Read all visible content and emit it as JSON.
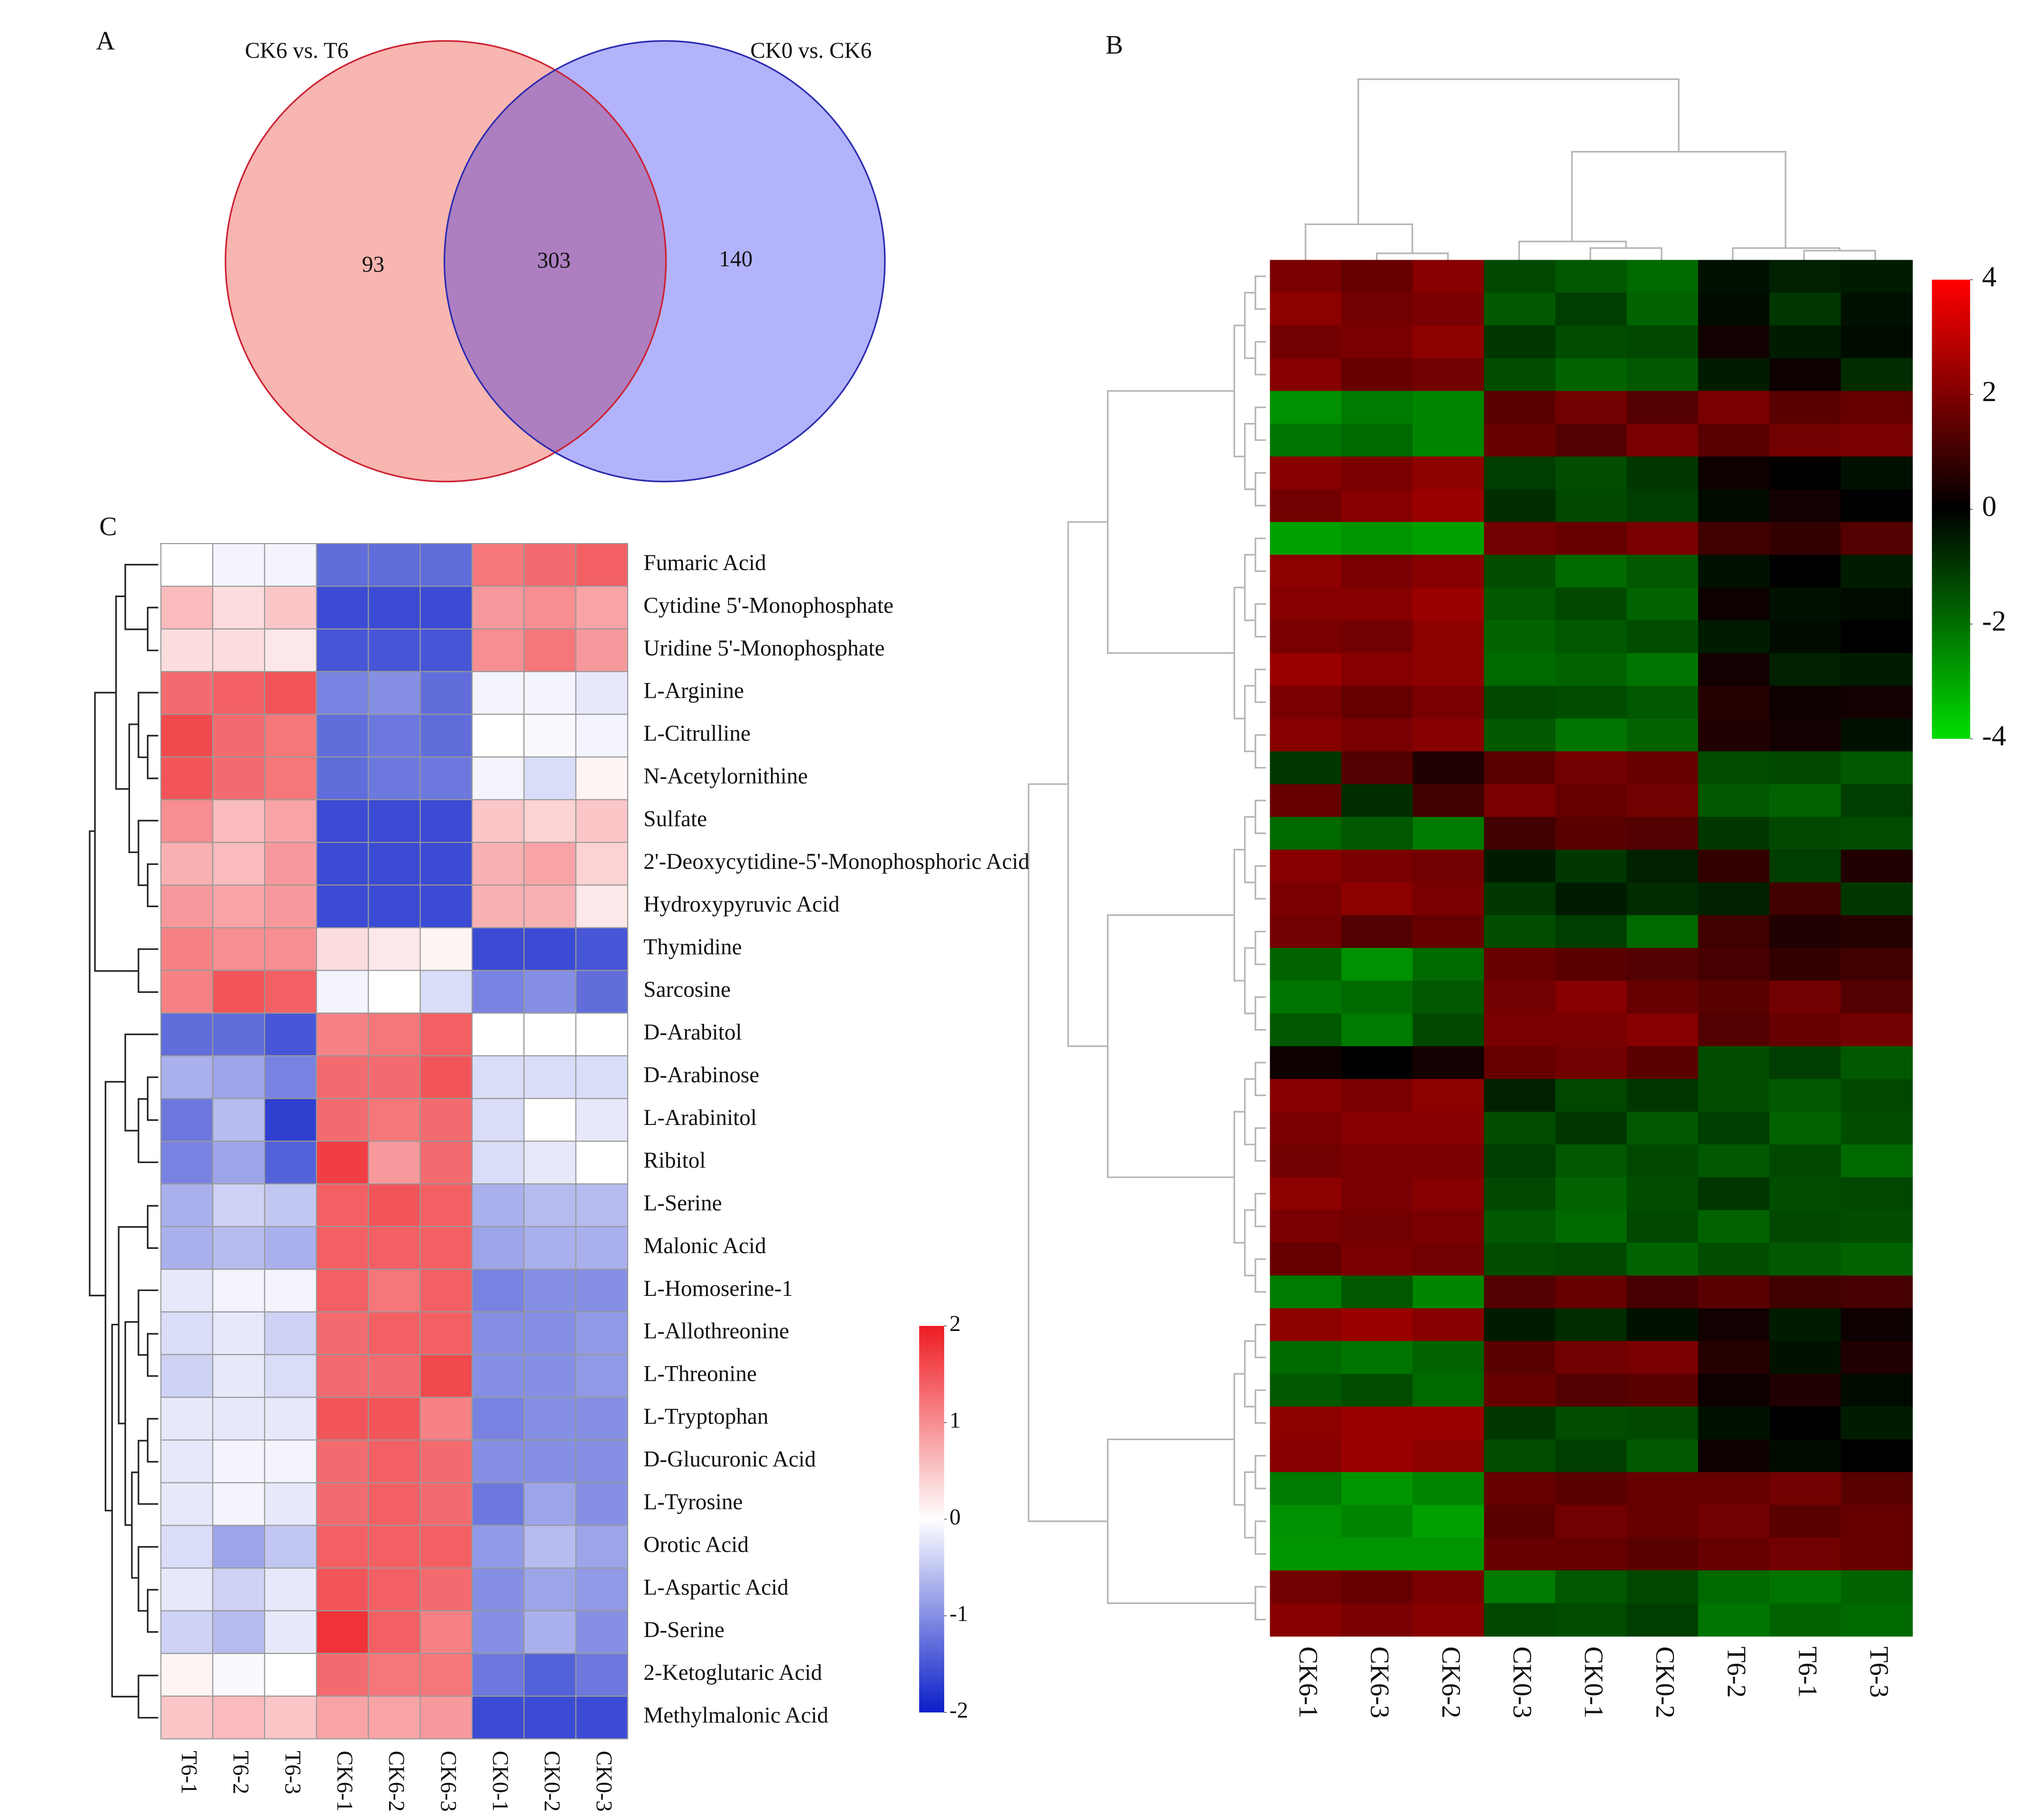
{
  "chart_data": [
    {
      "type": "venn",
      "panel_label": "A",
      "sets": [
        {
          "name": "CK6 vs. T6",
          "color": "#f8b6b0",
          "stroke": "#cc2233"
        },
        {
          "name": "CK0 vs. CK6",
          "color": "#b3b3fb",
          "stroke": "#2b2bb0"
        }
      ],
      "overlap_color": "#ad7fc0",
      "values": [
        93,
        303,
        140
      ]
    },
    {
      "type": "heatmap",
      "panel_label": "C",
      "categories": [
        "T6-1",
        "T6-2",
        "T6-3",
        "CK6-1",
        "CK6-2",
        "CK6-3",
        "CK0-1",
        "CK0-2",
        "CK0-3"
      ],
      "rows": [
        "Fumaric Acid",
        "Cytidine 5'-Monophosphate",
        "Uridine 5'-Monophosphate",
        "L-Arginine",
        "L-Citrulline",
        "N-Acetylornithine",
        "Sulfate",
        "2'-Deoxycytidine-5'-Monophosphoric Acid",
        "Hydroxypyruvic Acid",
        "Thymidine",
        "Sarcosine",
        "D-Arabitol",
        "D-Arabinose",
        "L-Arabinitol",
        "Ribitol",
        "L-Serine",
        "Malonic Acid",
        "L-Homoserine-1",
        "L-Allothreonine",
        "L-Threonine",
        "L-Tryptophan",
        "D-Glucuronic Acid",
        "L-Tyrosine",
        "Orotic Acid",
        "L-Aspartic Acid",
        "D-Serine",
        "2-Ketoglutaric Acid",
        "Methylmalonic Acid"
      ],
      "values": [
        [
          0,
          -0.1,
          -0.1,
          -1.3,
          -1.3,
          -1.3,
          1.2,
          1.3,
          1.4
        ],
        [
          0.6,
          0.3,
          0.5,
          -1.6,
          -1.6,
          -1.6,
          0.9,
          1.0,
          0.8
        ],
        [
          0.3,
          0.3,
          0.2,
          -1.5,
          -1.5,
          -1.5,
          1.0,
          1.2,
          0.9
        ],
        [
          1.3,
          1.4,
          1.5,
          -1.1,
          -1.0,
          -1.3,
          -0.1,
          -0.1,
          -0.2
        ],
        [
          1.6,
          1.3,
          1.2,
          -1.3,
          -1.2,
          -1.3,
          0,
          -0.05,
          -0.1
        ],
        [
          1.5,
          1.3,
          1.2,
          -1.3,
          -1.2,
          -1.2,
          -0.1,
          -0.3,
          0.1
        ],
        [
          1.0,
          0.6,
          0.8,
          -1.6,
          -1.6,
          -1.6,
          0.5,
          0.4,
          0.5
        ],
        [
          0.7,
          0.6,
          0.9,
          -1.6,
          -1.6,
          -1.6,
          0.7,
          0.8,
          0.4
        ],
        [
          0.9,
          0.8,
          0.9,
          -1.6,
          -1.6,
          -1.6,
          0.7,
          0.7,
          0.2
        ],
        [
          1.1,
          1.0,
          1.0,
          0.3,
          0.2,
          0.1,
          -1.6,
          -1.6,
          -1.5
        ],
        [
          1.1,
          1.5,
          1.4,
          -0.1,
          0,
          -0.3,
          -1.1,
          -1.0,
          -1.3
        ],
        [
          -1.3,
          -1.3,
          -1.5,
          1.1,
          1.2,
          1.4,
          0,
          0,
          0
        ],
        [
          -0.7,
          -0.8,
          -1.1,
          1.3,
          1.3,
          1.5,
          -0.3,
          -0.3,
          -0.3
        ],
        [
          -1.2,
          -0.6,
          -1.7,
          1.3,
          1.2,
          1.3,
          -0.3,
          0,
          -0.2
        ],
        [
          -1.1,
          -0.8,
          -1.4,
          1.7,
          0.9,
          1.3,
          -0.3,
          -0.2,
          0
        ],
        [
          -0.7,
          -0.4,
          -0.5,
          1.4,
          1.5,
          1.4,
          -0.7,
          -0.6,
          -0.6
        ],
        [
          -0.7,
          -0.6,
          -0.7,
          1.4,
          1.4,
          1.4,
          -0.8,
          -0.7,
          -0.7
        ],
        [
          -0.2,
          -0.1,
          -0.1,
          1.4,
          1.2,
          1.4,
          -1.1,
          -1.0,
          -1.0
        ],
        [
          -0.3,
          -0.2,
          -0.4,
          1.3,
          1.4,
          1.4,
          -1.0,
          -1.0,
          -0.9
        ],
        [
          -0.4,
          -0.2,
          -0.3,
          1.3,
          1.3,
          1.6,
          -1.0,
          -1.0,
          -0.9
        ],
        [
          -0.2,
          -0.2,
          -0.2,
          1.5,
          1.5,
          1.1,
          -1.1,
          -1.0,
          -1.0
        ],
        [
          -0.2,
          -0.1,
          -0.1,
          1.3,
          1.4,
          1.3,
          -1.0,
          -1.0,
          -1.0
        ],
        [
          -0.2,
          -0.1,
          -0.2,
          1.3,
          1.4,
          1.3,
          -1.2,
          -0.8,
          -1.0
        ],
        [
          -0.3,
          -0.8,
          -0.5,
          1.4,
          1.4,
          1.4,
          -0.9,
          -0.6,
          -0.8
        ],
        [
          -0.2,
          -0.4,
          -0.2,
          1.5,
          1.4,
          1.3,
          -1.0,
          -0.8,
          -0.9
        ],
        [
          -0.4,
          -0.6,
          -0.2,
          1.8,
          1.4,
          1.1,
          -1.0,
          -0.7,
          -1.0
        ],
        [
          0.1,
          -0.05,
          0,
          1.3,
          1.2,
          1.2,
          -1.2,
          -1.4,
          -1.2
        ],
        [
          0.5,
          0.6,
          0.5,
          0.8,
          0.8,
          0.9,
          -1.6,
          -1.6,
          -1.6
        ]
      ],
      "colors": [
        "#0a1ec8",
        "#ffffff",
        "#ee1c22"
      ],
      "zlim": [
        -2,
        2
      ],
      "zticks": [
        -2,
        -1,
        0,
        1,
        2
      ]
    },
    {
      "type": "heatmap",
      "panel_label": "B",
      "categories": [
        "CK6-1",
        "CK6-3",
        "CK6-2",
        "CK0-3",
        "CK0-1",
        "CK0-2",
        "T6-2",
        "T6-1",
        "T6-3"
      ],
      "values": [
        [
          1.9,
          1.6,
          2.1,
          -1.3,
          -1.6,
          -1.9,
          -0.3,
          -0.6,
          -0.5
        ],
        [
          2.2,
          1.8,
          1.9,
          -1.6,
          -1.1,
          -1.8,
          -0.2,
          -1.0,
          -0.3
        ],
        [
          1.8,
          1.9,
          2.2,
          -1.0,
          -1.4,
          -1.3,
          0.3,
          -0.5,
          -0.2
        ],
        [
          2.1,
          1.6,
          1.8,
          -1.4,
          -1.8,
          -1.6,
          -0.5,
          0.2,
          -0.8
        ],
        [
          -2.6,
          -2.2,
          -2.4,
          1.4,
          1.8,
          1.3,
          1.9,
          1.4,
          1.6
        ],
        [
          -2.1,
          -1.9,
          -2.4,
          1.6,
          1.3,
          1.9,
          1.4,
          1.8,
          1.9
        ],
        [
          2.1,
          1.9,
          2.2,
          -1.1,
          -1.4,
          -1.0,
          0.2,
          0.0,
          -0.3
        ],
        [
          1.8,
          2.1,
          2.4,
          -0.8,
          -1.3,
          -1.1,
          -0.2,
          0.3,
          0.0
        ],
        [
          -2.9,
          -2.7,
          -2.9,
          1.8,
          1.6,
          1.9,
          1.0,
          0.8,
          1.3
        ],
        [
          2.2,
          1.9,
          2.1,
          -1.4,
          -1.9,
          -1.6,
          -0.3,
          0.0,
          -0.5
        ],
        [
          2.1,
          2.1,
          2.4,
          -1.6,
          -1.3,
          -1.8,
          0.2,
          -0.3,
          -0.2
        ],
        [
          1.9,
          1.8,
          2.2,
          -1.8,
          -1.6,
          -1.4,
          -0.5,
          -0.2,
          0.0
        ],
        [
          2.4,
          2.1,
          2.2,
          -1.9,
          -1.8,
          -2.1,
          0.3,
          -0.6,
          -0.5
        ],
        [
          1.9,
          1.6,
          1.9,
          -1.3,
          -1.4,
          -1.6,
          0.6,
          0.2,
          0.3
        ],
        [
          2.1,
          1.9,
          2.1,
          -1.6,
          -2.1,
          -1.8,
          0.5,
          0.3,
          -0.3
        ],
        [
          -1.0,
          1.3,
          0.5,
          1.4,
          1.8,
          1.6,
          -1.4,
          -1.3,
          -1.6
        ],
        [
          1.6,
          -0.8,
          1.0,
          1.9,
          1.6,
          1.8,
          -1.6,
          -1.8,
          -1.1
        ],
        [
          -1.9,
          -1.6,
          -2.2,
          1.0,
          1.4,
          1.3,
          -1.0,
          -1.3,
          -1.4
        ],
        [
          2.1,
          1.9,
          1.8,
          -0.5,
          -1.0,
          -0.6,
          0.8,
          -1.1,
          0.5
        ],
        [
          1.9,
          2.2,
          1.9,
          -1.0,
          -0.5,
          -0.8,
          -0.6,
          1.0,
          -1.0
        ],
        [
          1.8,
          1.3,
          1.6,
          -1.4,
          -1.1,
          -1.9,
          1.0,
          0.5,
          0.6
        ],
        [
          -1.8,
          -2.6,
          -1.9,
          1.6,
          1.4,
          1.3,
          1.1,
          0.8,
          1.0
        ],
        [
          -2.1,
          -1.9,
          -1.6,
          1.8,
          2.1,
          1.6,
          1.4,
          1.8,
          1.3
        ],
        [
          -1.6,
          -2.2,
          -1.3,
          1.9,
          1.9,
          2.1,
          1.3,
          1.6,
          1.8
        ],
        [
          0.2,
          0.0,
          0.3,
          1.6,
          1.8,
          1.4,
          -1.4,
          -1.1,
          -1.6
        ],
        [
          2.1,
          1.9,
          2.2,
          -0.6,
          -1.3,
          -1.0,
          -1.4,
          -1.6,
          -1.3
        ],
        [
          1.9,
          2.1,
          2.1,
          -1.4,
          -1.0,
          -1.6,
          -1.1,
          -1.8,
          -1.4
        ],
        [
          1.8,
          1.9,
          1.9,
          -1.1,
          -1.6,
          -1.3,
          -1.6,
          -1.3,
          -1.9
        ],
        [
          2.2,
          1.9,
          2.1,
          -1.3,
          -1.8,
          -1.4,
          -1.0,
          -1.4,
          -1.3
        ],
        [
          1.9,
          1.8,
          1.9,
          -1.6,
          -1.9,
          -1.3,
          -1.8,
          -1.3,
          -1.4
        ],
        [
          1.6,
          1.9,
          1.8,
          -1.4,
          -1.3,
          -1.8,
          -1.4,
          -1.6,
          -1.8
        ],
        [
          -2.2,
          -1.6,
          -2.4,
          1.3,
          1.6,
          1.1,
          1.4,
          1.0,
          1.1
        ],
        [
          2.2,
          2.4,
          2.1,
          -0.5,
          -0.8,
          -0.3,
          0.3,
          -0.5,
          0.2
        ],
        [
          -1.9,
          -2.1,
          -1.8,
          1.4,
          1.8,
          1.9,
          0.6,
          -0.3,
          0.5
        ],
        [
          -1.6,
          -1.4,
          -1.9,
          1.6,
          1.3,
          1.4,
          0.2,
          0.5,
          -0.2
        ],
        [
          2.2,
          2.4,
          2.4,
          -1.0,
          -1.4,
          -1.3,
          -0.3,
          0.0,
          -0.5
        ],
        [
          2.1,
          2.4,
          2.2,
          -1.4,
          -1.1,
          -1.6,
          0.2,
          -0.2,
          0.0
        ],
        [
          -2.2,
          -2.7,
          -2.4,
          1.6,
          1.4,
          1.6,
          1.6,
          1.8,
          1.4
        ],
        [
          -2.6,
          -2.4,
          -2.9,
          1.4,
          1.8,
          1.6,
          1.8,
          1.4,
          1.6
        ],
        [
          -2.7,
          -2.7,
          -2.7,
          1.6,
          1.6,
          1.4,
          1.6,
          1.8,
          1.6
        ],
        [
          1.8,
          1.6,
          1.9,
          -2.2,
          -1.6,
          -1.3,
          -1.9,
          -2.1,
          -1.8
        ],
        [
          2.1,
          1.9,
          2.1,
          -1.3,
          -1.4,
          -1.1,
          -2.1,
          -1.8,
          -1.9
        ]
      ],
      "colors": [
        "#00dd00",
        "#000000",
        "#ff0000"
      ],
      "zlim": [
        -4,
        4
      ],
      "zticks": [
        4,
        2,
        0,
        -2,
        -4
      ]
    }
  ]
}
